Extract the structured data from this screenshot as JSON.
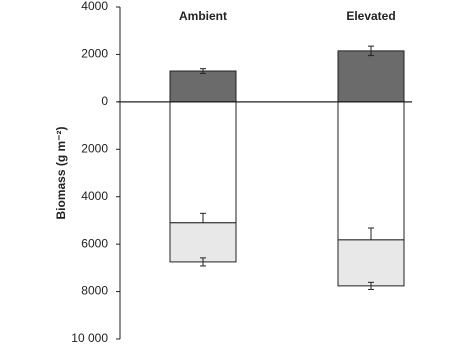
{
  "chart_data": {
    "type": "stacked_bar",
    "y_label": "Biomass (g m⁻²)",
    "categories": [
      "Ambient",
      "Elevated"
    ],
    "series": [
      {
        "color": "#6b6b6b",
        "values": [
          1300,
          2150
        ],
        "errors": [
          100,
          200
        ]
      },
      {
        "color": "#ffffff",
        "values": [
          -5100,
          -5820
        ],
        "errors": [
          400,
          500
        ]
      },
      {
        "color": "#e8e8e8",
        "values": [
          -1650,
          -1940
        ],
        "errors": [
          170,
          150
        ]
      }
    ],
    "ylim": [
      -10000,
      4000
    ],
    "yticks": [
      4000,
      2000,
      0,
      {
        "value": -2000,
        "label": "2000"
      },
      {
        "value": -4000,
        "label": "4000"
      },
      {
        "value": -6000,
        "label": "6000"
      },
      {
        "value": -8000,
        "label": "8000"
      },
      {
        "value": -10000,
        "label": "10 000"
      }
    ]
  }
}
